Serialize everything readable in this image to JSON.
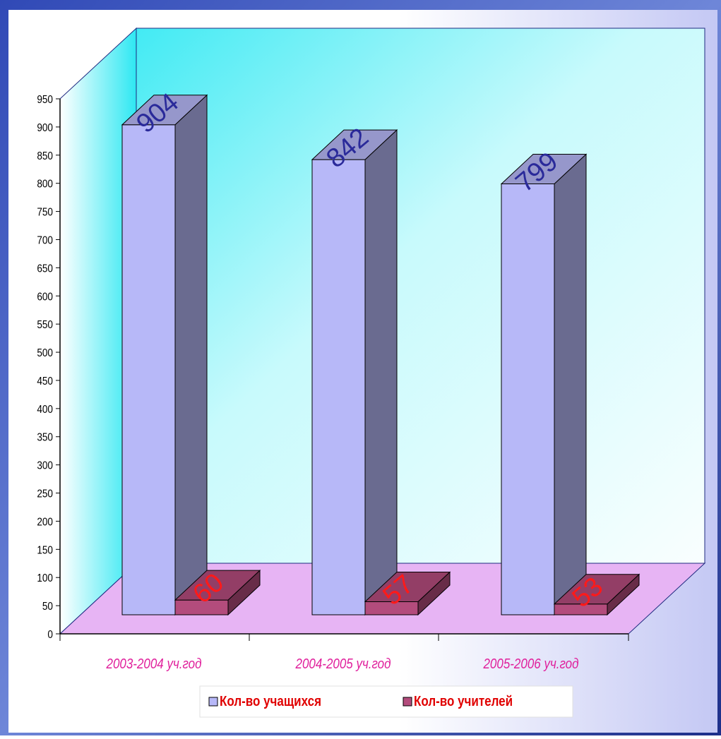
{
  "chart_data": {
    "type": "bar",
    "style": "3d-clustered-column",
    "categories": [
      "2003-2004 уч.год",
      "2004-2005 уч.год",
      "2005-2006 уч.год"
    ],
    "series": [
      {
        "name": "Кол-во учащихся",
        "values": [
          904,
          842,
          799
        ],
        "color": "#B7B8F8",
        "label_color": "#2A2A9A"
      },
      {
        "name": "Кол-во учителей",
        "values": [
          60,
          57,
          53
        ],
        "color": "#B34C7C",
        "label_color": "#FF1A1A"
      }
    ],
    "ylim": [
      0,
      950
    ],
    "yticks": [
      0,
      50,
      100,
      150,
      200,
      250,
      300,
      350,
      400,
      450,
      500,
      550,
      600,
      650,
      700,
      750,
      800,
      850,
      900,
      950
    ],
    "legend_position": "bottom",
    "colors": {
      "background": "#2C3F9C",
      "back_wall": "#CFF8FA",
      "floor": "#E7B4F4",
      "category_label": "#E0209C"
    }
  }
}
